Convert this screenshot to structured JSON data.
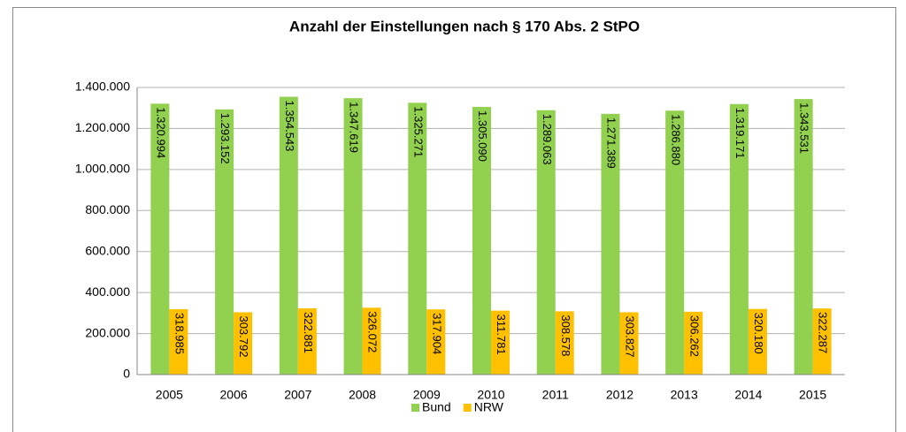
{
  "chart_data": {
    "type": "bar",
    "title": "Anzahl der Einstellungen nach § 170 Abs. 2 StPO",
    "categories": [
      "2005",
      "2006",
      "2007",
      "2008",
      "2009",
      "2010",
      "2011",
      "2012",
      "2013",
      "2014",
      "2015"
    ],
    "series": [
      {
        "name": "Bund",
        "color": "#92d050",
        "values": [
          1320994,
          1293152,
          1354543,
          1347619,
          1325271,
          1305090,
          1289063,
          1271389,
          1286880,
          1319171,
          1343531
        ],
        "value_labels": [
          "1.320.994",
          "1.293.152",
          "1.354.543",
          "1.347.619",
          "1.325.271",
          "1.305.090",
          "1.289.063",
          "1.271.389",
          "1.286.880",
          "1.319.171",
          "1.343.531"
        ]
      },
      {
        "name": "NRW",
        "color": "#ffc000",
        "values": [
          318985,
          303792,
          322881,
          326072,
          317904,
          311781,
          308578,
          303827,
          306262,
          320180,
          322287
        ],
        "value_labels": [
          "318.985",
          "303.792",
          "322.881",
          "326.072",
          "317.904",
          "311.781",
          "308.578",
          "303.827",
          "306.262",
          "320.180",
          "322.287"
        ]
      }
    ],
    "ylim": [
      0,
      1400000
    ],
    "yticks": [
      0,
      {
        "value": 200000,
        "label": "200.000"
      },
      {
        "value": 400000,
        "label": "400.000"
      },
      {
        "value": 600000,
        "label": "600.000"
      },
      {
        "value": 800000,
        "label": "800.000"
      },
      {
        "value": 1000000,
        "label": "1.000.000"
      },
      {
        "value": 1200000,
        "label": "1.200.000"
      },
      {
        "value": 1400000,
        "label": "1.400.000"
      }
    ],
    "grid": true,
    "legend": "bottom"
  }
}
